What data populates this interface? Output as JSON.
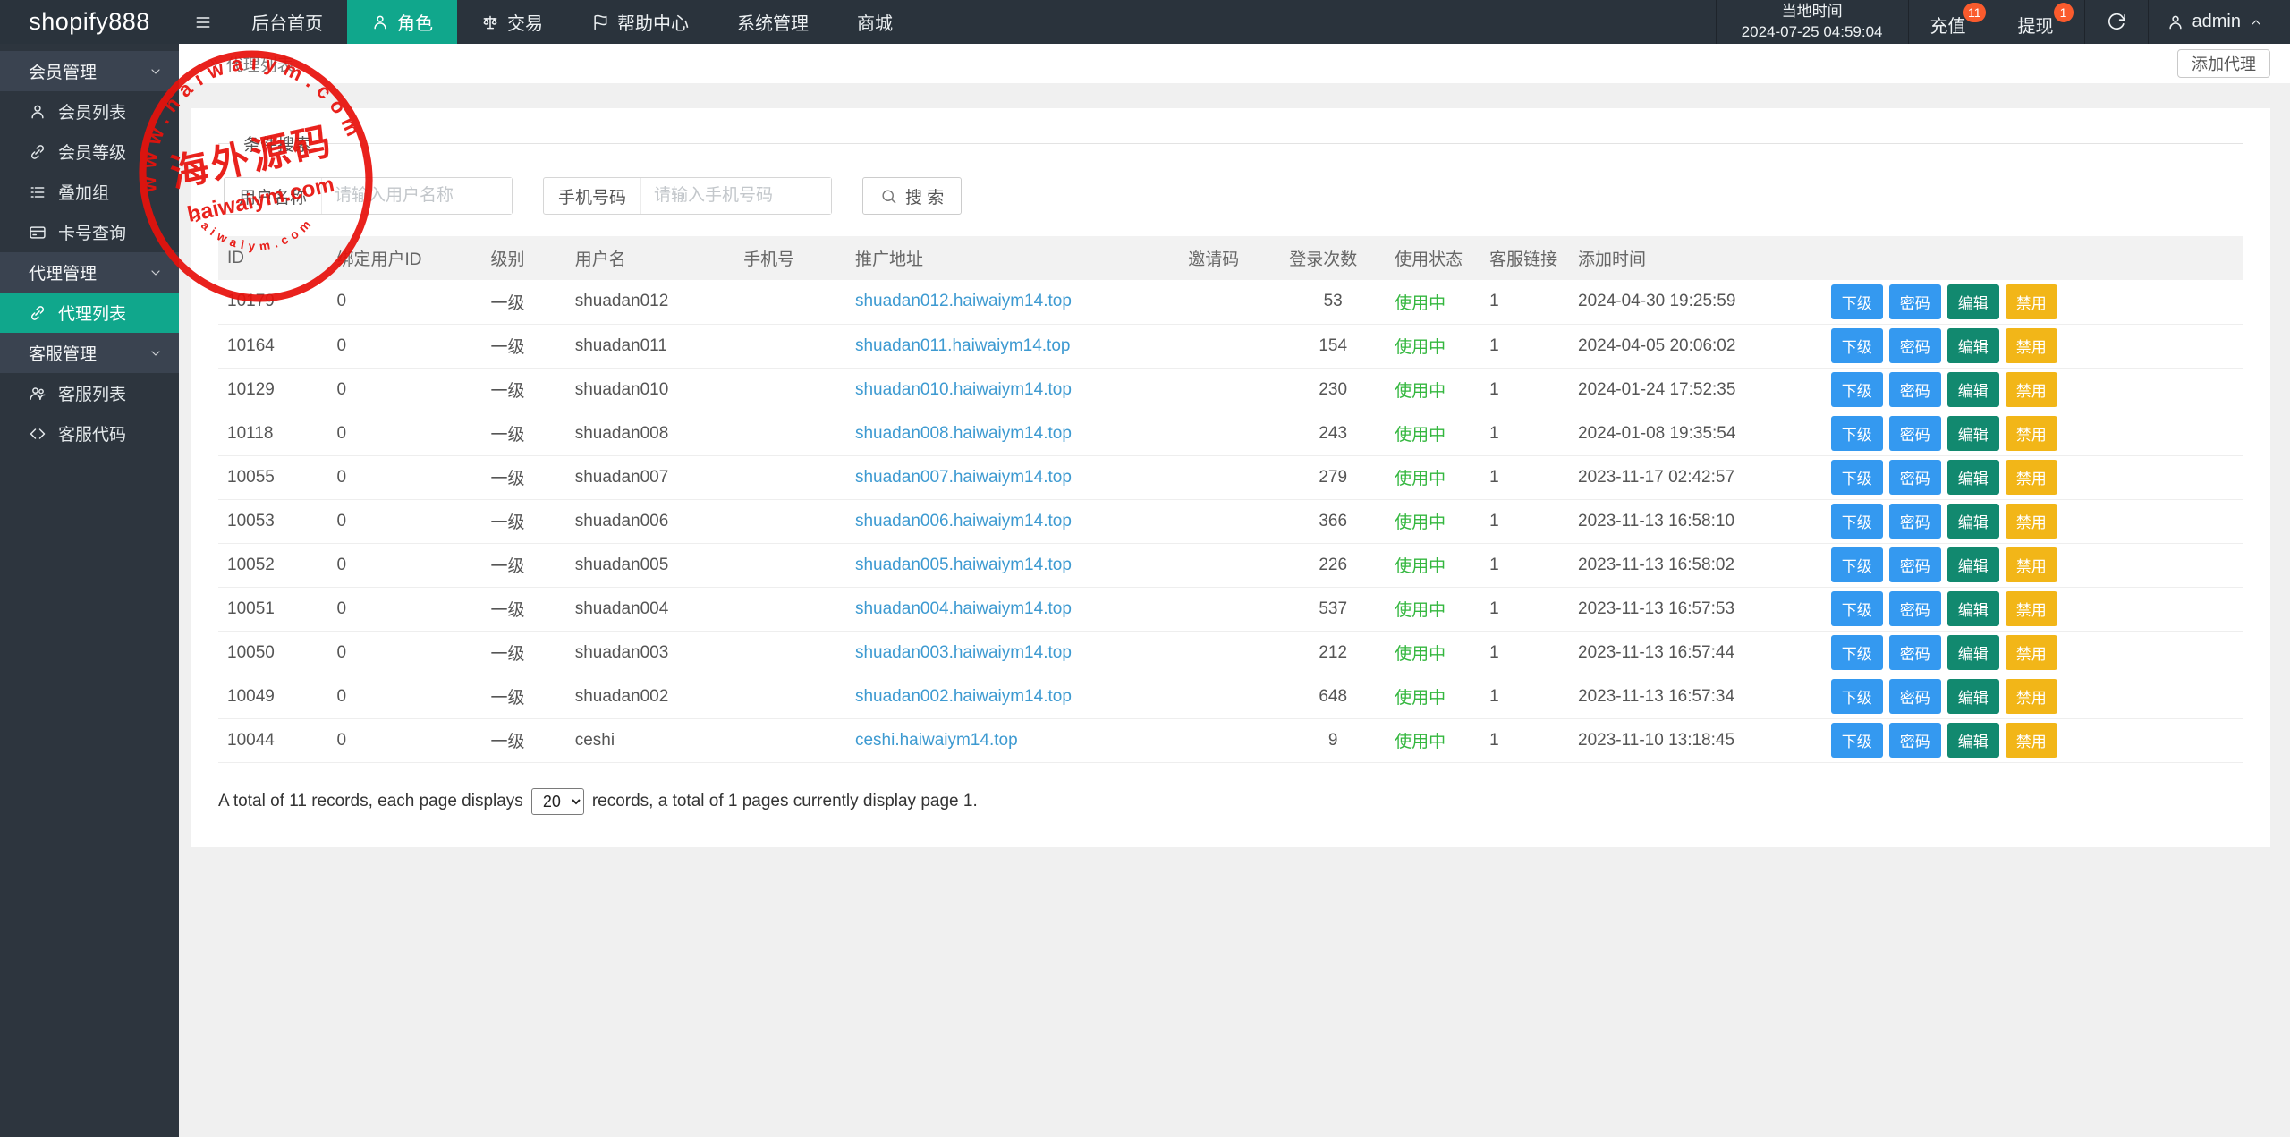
{
  "navbar": {
    "logo": "shopify888",
    "items": [
      {
        "label": "后台首页"
      },
      {
        "label": "角色",
        "icon": "person",
        "active": true
      },
      {
        "label": "交易",
        "icon": "scales"
      },
      {
        "label": "帮助中心",
        "icon": "flag"
      },
      {
        "label": "系统管理"
      },
      {
        "label": "商城"
      }
    ],
    "time_label": "当地时间",
    "time_value": "2024-07-25 04:59:04",
    "recharge": {
      "label": "充值",
      "badge": "11"
    },
    "withdraw": {
      "label": "提现",
      "badge": "1"
    },
    "user": "admin"
  },
  "sidebar": {
    "sections": [
      {
        "label": "会员管理",
        "items": [
          {
            "icon": "person",
            "label": "会员列表"
          },
          {
            "icon": "link",
            "label": "会员等级"
          },
          {
            "icon": "list",
            "label": "叠加组"
          },
          {
            "icon": "card",
            "label": "卡号查询"
          }
        ]
      },
      {
        "label": "代理管理",
        "items": [
          {
            "icon": "link",
            "label": "代理列表",
            "active": true
          }
        ]
      },
      {
        "label": "客服管理",
        "items": [
          {
            "icon": "users",
            "label": "客服列表"
          },
          {
            "icon": "code",
            "label": "客服代码"
          }
        ]
      }
    ]
  },
  "content_header": {
    "breadcrumb_separator": "»",
    "breadcrumb": "代理列表",
    "add_button": "添加代理"
  },
  "search": {
    "legend": "条件搜索",
    "username_label": "用户名称",
    "username_placeholder": "请输入用户名称",
    "username_value": "",
    "phone_label": "手机号码",
    "phone_placeholder": "请输入手机号码",
    "phone_value": "",
    "search_button": "搜 索"
  },
  "table": {
    "columns": [
      {
        "key": "id",
        "label": "ID"
      },
      {
        "key": "bind_user_id",
        "label": "绑定用户ID"
      },
      {
        "key": "level",
        "label": "级别"
      },
      {
        "key": "username",
        "label": "用户名"
      },
      {
        "key": "phone",
        "label": "手机号"
      },
      {
        "key": "promo_url",
        "label": "推广地址"
      },
      {
        "key": "invite_code",
        "label": "邀请码"
      },
      {
        "key": "login_count",
        "label": "登录次数"
      },
      {
        "key": "status",
        "label": "使用状态"
      },
      {
        "key": "service_link",
        "label": "客服链接"
      },
      {
        "key": "added_time",
        "label": "添加时间"
      },
      {
        "key": "actions",
        "label": ""
      }
    ],
    "actions": [
      {
        "label": "下级",
        "color": "#3499f0"
      },
      {
        "label": "密码",
        "color": "#3499f0"
      },
      {
        "label": "编辑",
        "color": "#12896f"
      },
      {
        "label": "禁用",
        "color": "#f2b618"
      }
    ],
    "rows": [
      {
        "id": "10179",
        "bind_user_id": "0",
        "level": "一级",
        "username": "shuadan012",
        "phone": "",
        "promo_url": "shuadan012.haiwaiym14.top",
        "invite_code": "",
        "login_count": "53",
        "status": "使用中",
        "service_link": "1",
        "added_time": "2024-04-30 19:25:59"
      },
      {
        "id": "10164",
        "bind_user_id": "0",
        "level": "一级",
        "username": "shuadan011",
        "phone": "",
        "promo_url": "shuadan011.haiwaiym14.top",
        "invite_code": "",
        "login_count": "154",
        "status": "使用中",
        "service_link": "1",
        "added_time": "2024-04-05 20:06:02"
      },
      {
        "id": "10129",
        "bind_user_id": "0",
        "level": "一级",
        "username": "shuadan010",
        "phone": "",
        "promo_url": "shuadan010.haiwaiym14.top",
        "invite_code": "",
        "login_count": "230",
        "status": "使用中",
        "service_link": "1",
        "added_time": "2024-01-24 17:52:35"
      },
      {
        "id": "10118",
        "bind_user_id": "0",
        "level": "一级",
        "username": "shuadan008",
        "phone": "",
        "promo_url": "shuadan008.haiwaiym14.top",
        "invite_code": "",
        "login_count": "243",
        "status": "使用中",
        "service_link": "1",
        "added_time": "2024-01-08 19:35:54"
      },
      {
        "id": "10055",
        "bind_user_id": "0",
        "level": "一级",
        "username": "shuadan007",
        "phone": "",
        "promo_url": "shuadan007.haiwaiym14.top",
        "invite_code": "",
        "login_count": "279",
        "status": "使用中",
        "service_link": "1",
        "added_time": "2023-11-17 02:42:57"
      },
      {
        "id": "10053",
        "bind_user_id": "0",
        "level": "一级",
        "username": "shuadan006",
        "phone": "",
        "promo_url": "shuadan006.haiwaiym14.top",
        "invite_code": "",
        "login_count": "366",
        "status": "使用中",
        "service_link": "1",
        "added_time": "2023-11-13 16:58:10"
      },
      {
        "id": "10052",
        "bind_user_id": "0",
        "level": "一级",
        "username": "shuadan005",
        "phone": "",
        "promo_url": "shuadan005.haiwaiym14.top",
        "invite_code": "",
        "login_count": "226",
        "status": "使用中",
        "service_link": "1",
        "added_time": "2023-11-13 16:58:02"
      },
      {
        "id": "10051",
        "bind_user_id": "0",
        "level": "一级",
        "username": "shuadan004",
        "phone": "",
        "promo_url": "shuadan004.haiwaiym14.top",
        "invite_code": "",
        "login_count": "537",
        "status": "使用中",
        "service_link": "1",
        "added_time": "2023-11-13 16:57:53"
      },
      {
        "id": "10050",
        "bind_user_id": "0",
        "level": "一级",
        "username": "shuadan003",
        "phone": "",
        "promo_url": "shuadan003.haiwaiym14.top",
        "invite_code": "",
        "login_count": "212",
        "status": "使用中",
        "service_link": "1",
        "added_time": "2023-11-13 16:57:44"
      },
      {
        "id": "10049",
        "bind_user_id": "0",
        "level": "一级",
        "username": "shuadan002",
        "phone": "",
        "promo_url": "shuadan002.haiwaiym14.top",
        "invite_code": "",
        "login_count": "648",
        "status": "使用中",
        "service_link": "1",
        "added_time": "2023-11-13 16:57:34"
      },
      {
        "id": "10044",
        "bind_user_id": "0",
        "level": "一级",
        "username": "ceshi",
        "phone": "",
        "promo_url": "ceshi.haiwaiym14.top",
        "invite_code": "",
        "login_count": "9",
        "status": "使用中",
        "service_link": "1",
        "added_time": "2023-11-10 13:18:45"
      }
    ]
  },
  "pagination": {
    "text_before": "A total of 11 records, each page displays",
    "page_size_options": [
      "20"
    ],
    "selected_page_size": "20",
    "text_after": "records, a total of 1 pages currently display page 1."
  },
  "watermark": {
    "rim_text": "www.haiwaiym.com",
    "rim_bottom_text": "haiwaiym.com",
    "center_text": "海外源码",
    "sub_text": "haiwaiym.com"
  },
  "colors": {
    "navbar_bg": "#2a333c",
    "sidebar_bg": "#2d353e",
    "accent_teal": "#10a78c",
    "link_blue": "#3d9ad1",
    "status_green": "#34b73f",
    "badge_orange": "#fa5b2d",
    "stamp_red": "#e8120c"
  }
}
